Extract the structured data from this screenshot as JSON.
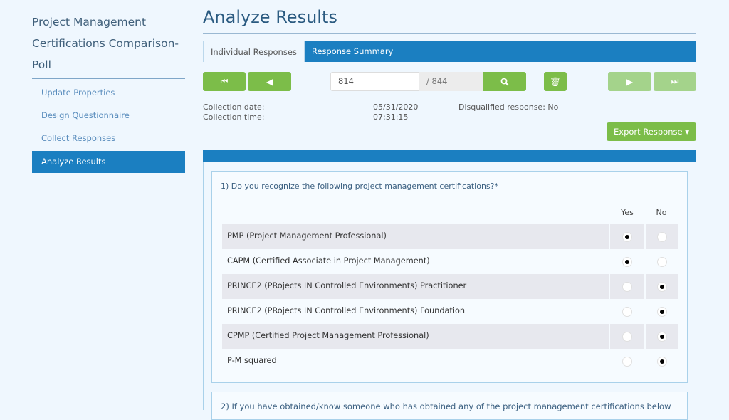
{
  "sidebar": {
    "title": "Project Management Certifications Comparison-Poll",
    "items": [
      {
        "label": "Update Properties"
      },
      {
        "label": "Design Questionnaire"
      },
      {
        "label": "Collect Responses"
      },
      {
        "label": "Analyze Results",
        "active": true
      }
    ]
  },
  "header": {
    "title": "Analyze Results"
  },
  "tabs": [
    {
      "label": "Individual Responses",
      "active": true
    },
    {
      "label": "Response Summary"
    }
  ],
  "pager": {
    "current": "814",
    "total": "/ 844",
    "icons": [
      "first-icon",
      "prev-icon",
      "search-icon",
      "trash-icon",
      "next-icon",
      "last-icon"
    ]
  },
  "info": {
    "date_label": "Collection date:",
    "date_value": "05/31/2020",
    "time_label": "Collection time:",
    "time_value": "07:31:15",
    "disqualified": "Disqualified response: No"
  },
  "export_label": "Export Response ▾",
  "q1": {
    "text": "1) Do you recognize the following project management certifications?*",
    "col_yes": "Yes",
    "col_no": "No",
    "rows": [
      {
        "label": "PMP (Project Management Professional)",
        "answer": "Yes"
      },
      {
        "label": "CAPM (Certified Associate in Project Management)",
        "answer": "Yes"
      },
      {
        "label": "PRINCE2 (PRojects IN Controlled Environments) Practitioner",
        "answer": "No"
      },
      {
        "label": "PRINCE2 (PRojects IN Controlled Environments) Foundation",
        "answer": "No"
      },
      {
        "label": "CPMP (Certified Project Management Professional)",
        "answer": "No"
      },
      {
        "label": "P-M squared",
        "answer": "No"
      }
    ]
  },
  "q2": {
    "text": "2) If you have obtained/know someone who has obtained any of the project management certifications below"
  },
  "colors": {
    "accent": "#1b7fc1",
    "green": "#7cbd49",
    "green_disabled": "#a4d38b"
  }
}
